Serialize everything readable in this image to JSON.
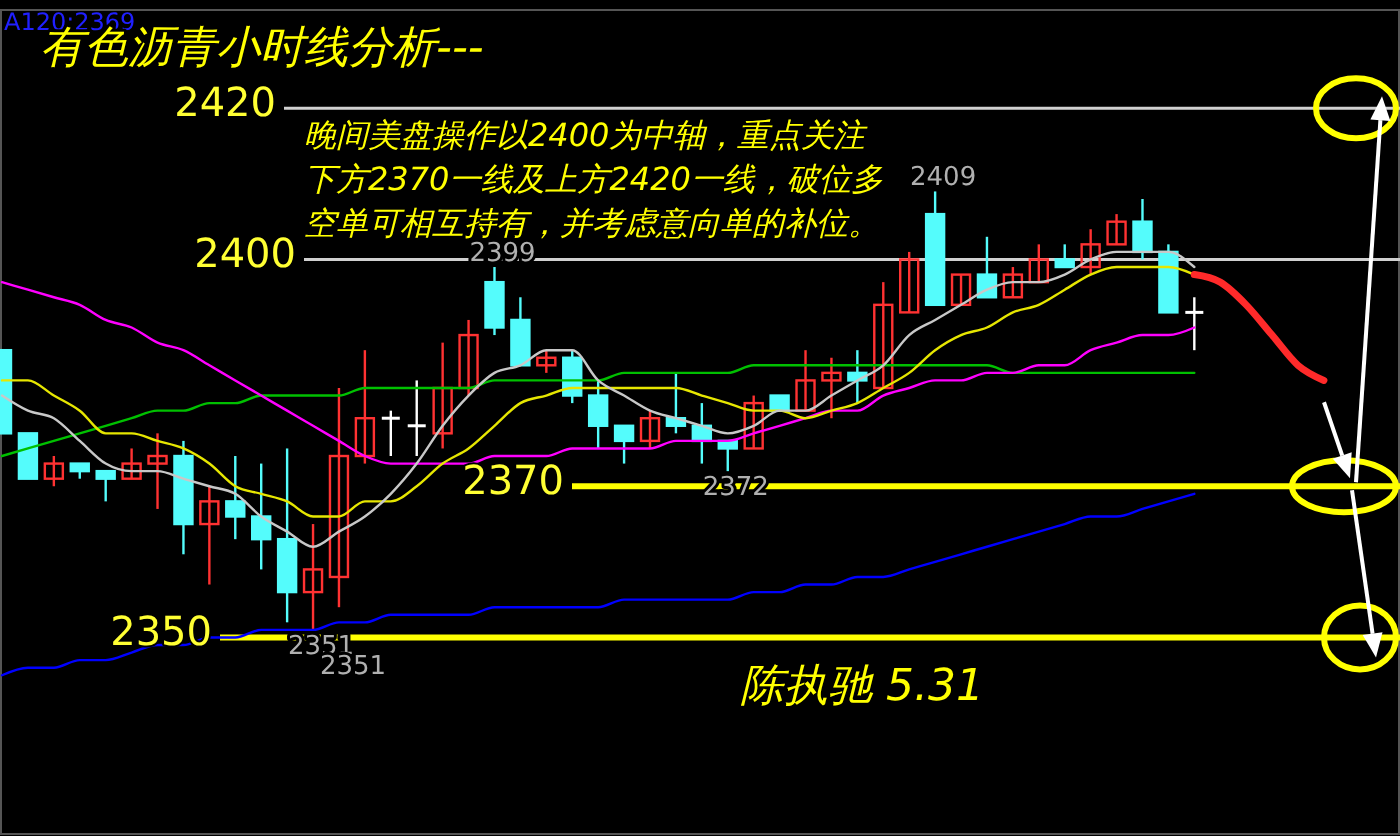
{
  "chart_data": {
    "type": "candlestick",
    "title": "有色沥青小时线分析---",
    "tick_labels": false,
    "ylim": [
      2324,
      2433
    ],
    "categories": [
      null,
      null,
      null,
      null,
      null,
      null,
      null,
      null,
      null,
      null,
      null,
      null,
      null,
      null,
      null,
      null,
      null,
      null,
      null,
      null,
      null,
      null,
      null,
      null,
      null,
      null,
      null,
      null,
      null,
      null,
      null,
      null,
      null,
      null,
      null,
      null,
      null,
      null,
      null,
      null,
      null,
      null,
      null,
      null,
      null,
      null,
      null,
      null,
      null,
      null,
      null,
      null,
      null,
      null
    ],
    "ohlc": [
      [
        2388,
        2388,
        2377,
        2377
      ],
      [
        2377,
        2377,
        2371,
        2371
      ],
      [
        2371,
        2374,
        2370,
        2373
      ],
      [
        2373,
        2373,
        2371,
        2372
      ],
      [
        2372,
        2372,
        2368,
        2371
      ],
      [
        2371,
        2375,
        2371,
        2373
      ],
      [
        2373,
        2377,
        2367,
        2374
      ],
      [
        2374,
        2376,
        2361,
        2365
      ],
      [
        2365,
        2370,
        2357,
        2368
      ],
      [
        2368,
        2374,
        2363,
        2366
      ],
      [
        2366,
        2373,
        2359,
        2363
      ],
      [
        2363,
        2375,
        2352,
        2356
      ],
      [
        2356,
        2365,
        2351,
        2359
      ],
      [
        2358,
        2383,
        2354,
        2374
      ],
      [
        2374,
        2388,
        2373,
        2379
      ],
      [
        2379,
        2380,
        2374,
        2379
      ],
      [
        2378,
        2384,
        2374,
        2378
      ],
      [
        2377,
        2389,
        2375,
        2383
      ],
      [
        2383,
        2392,
        2382,
        2390
      ],
      [
        2397,
        2399,
        2390,
        2391
      ],
      [
        2392,
        2395,
        2386,
        2386
      ],
      [
        2386,
        2388,
        2385,
        2387
      ],
      [
        2387,
        2388,
        2381,
        2382
      ],
      [
        2382,
        2384,
        2375,
        2378
      ],
      [
        2378,
        2378,
        2373,
        2376
      ],
      [
        2376,
        2380,
        2375,
        2379
      ],
      [
        2379,
        2385,
        2377,
        2378
      ],
      [
        2378,
        2381,
        2373,
        2376
      ],
      [
        2376,
        2376,
        2372,
        2375
      ],
      [
        2375,
        2382,
        2375,
        2381
      ],
      [
        2382,
        2382,
        2380,
        2380
      ],
      [
        2380,
        2388,
        2380,
        2384
      ],
      [
        2384,
        2387,
        2379,
        2385
      ],
      [
        2385,
        2388,
        2381,
        2384
      ],
      [
        2383,
        2397,
        2383,
        2394
      ],
      [
        2393,
        2401,
        2393,
        2400
      ],
      [
        2406,
        2409,
        2394,
        2394
      ],
      [
        2394,
        2398,
        2394,
        2398
      ],
      [
        2398,
        2403,
        2395,
        2395
      ],
      [
        2395,
        2399,
        2395,
        2398
      ],
      [
        2397,
        2402,
        2397,
        2400
      ],
      [
        2400,
        2402,
        2399,
        2399
      ],
      [
        2399,
        2404,
        2398,
        2402
      ],
      [
        2402,
        2406,
        2402,
        2405
      ],
      [
        2405,
        2408,
        2400,
        2401
      ],
      [
        2401,
        2402,
        2393,
        2393
      ],
      [
        2393,
        2395,
        2388,
        2393
      ],
      null,
      null,
      null,
      null,
      null,
      null,
      null
    ],
    "colors": [
      "#54fcfc",
      "#54fcfc",
      "#ff3232",
      "#54fcfc",
      "#54fcfc",
      "#ff3232",
      "#ff3232",
      "#54fcfc",
      "#ff3232",
      "#54fcfc",
      "#54fcfc",
      "#54fcfc",
      "#ff3232",
      "#ff3232",
      "#ff3232",
      "#ffffff",
      "#ffffff",
      "#ff3232",
      "#ff3232",
      "#54fcfc",
      "#54fcfc",
      "#ff3232",
      "#54fcfc",
      "#54fcfc",
      "#54fcfc",
      "#ff3232",
      "#54fcfc",
      "#54fcfc",
      "#54fcfc",
      "#ff3232",
      "#54fcfc",
      "#ff3232",
      "#ff3232",
      "#54fcfc",
      "#ff3232",
      "#ff3232",
      "#54fcfc",
      "#ff3232",
      "#54fcfc",
      "#ff3232",
      "#ff3232",
      "#54fcfc",
      "#ff3232",
      "#ff3232",
      "#54fcfc",
      "#54fcfc",
      "#ffffff",
      null,
      null,
      null,
      null,
      null,
      null,
      null
    ],
    "series": [
      {
        "type": "line",
        "color": "#0000ff",
        "values": [
          2345,
          2346,
          2346,
          2347,
          2347,
          2348,
          2349,
          2349,
          2350,
          2350,
          2351,
          2351,
          2351,
          2352,
          2352,
          2353,
          2353,
          2353,
          2353,
          2354,
          2354,
          2354,
          2354,
          2354,
          2355,
          2355,
          2355,
          2355,
          2355,
          2356,
          2356,
          2357,
          2357,
          2358,
          2358,
          2359,
          2360,
          2361,
          2362,
          2363,
          2364,
          2365,
          2366,
          2366,
          2367,
          2368,
          2369,
          null,
          null,
          null,
          null,
          null,
          null,
          null
        ]
      },
      {
        "type": "line",
        "color": "#00c000",
        "values": [
          2374,
          2375,
          2376,
          2377,
          2378,
          2379,
          2380,
          2380,
          2381,
          2381,
          2382,
          2382,
          2382,
          2382,
          2383,
          2383,
          2383,
          2383,
          2383,
          2384,
          2384,
          2384,
          2384,
          2384,
          2385,
          2385,
          2385,
          2385,
          2385,
          2386,
          2386,
          2386,
          2386,
          2386,
          2386,
          2386,
          2386,
          2386,
          2386,
          2385,
          2385,
          2385,
          2385,
          2385,
          2385,
          2385,
          2385,
          null,
          null,
          null,
          null,
          null,
          null,
          null
        ]
      },
      {
        "type": "line",
        "color": "#ff00ff",
        "values": [
          2397,
          2396,
          2395,
          2394,
          2392,
          2391,
          2389,
          2388,
          2386,
          2384,
          2382,
          2380,
          2378,
          2376,
          2374,
          2373,
          2373,
          2373,
          2373,
          2374,
          2374,
          2374,
          2375,
          2375,
          2375,
          2375,
          2376,
          2376,
          2376,
          2377,
          2378,
          2379,
          2380,
          2380,
          2382,
          2383,
          2384,
          2384,
          2385,
          2385,
          2386,
          2386,
          2388,
          2389,
          2390,
          2390,
          2391,
          null,
          null,
          null,
          null,
          null,
          null,
          null
        ]
      },
      {
        "type": "line",
        "color": "#e6e600",
        "values": [
          2384,
          2384,
          2382,
          2380,
          2377,
          2377,
          2376,
          2375,
          2373,
          2370,
          2369,
          2368,
          2366,
          2366,
          2368,
          2368,
          2370,
          2373,
          2375,
          2378,
          2381,
          2382,
          2383,
          2383,
          2383,
          2383,
          2383,
          2382,
          2381,
          2380,
          2380,
          2379,
          2380,
          2381,
          2383,
          2385,
          2388,
          2390,
          2391,
          2393,
          2394,
          2396,
          2398,
          2399,
          2399,
          2399,
          2398,
          null,
          null,
          null,
          null,
          null,
          null,
          null
        ]
      },
      {
        "type": "line",
        "color": "#c8c8c8",
        "values": [
          2382,
          2380,
          2379,
          2376,
          2373,
          2372,
          2372,
          2371,
          2370,
          2369,
          2366,
          2364,
          2362,
          2364,
          2366,
          2369,
          2373,
          2378,
          2382,
          2385,
          2386,
          2388,
          2388,
          2384,
          2382,
          2380,
          2379,
          2378,
          2377,
          2378,
          2380,
          2380,
          2382,
          2384,
          2386,
          2390,
          2392,
          2394,
          2396,
          2397,
          2397,
          2398,
          2400,
          2401,
          2401,
          2401,
          2399,
          null,
          null,
          null,
          null,
          null,
          null,
          null
        ]
      },
      {
        "type": "line",
        "color": "#ff2a2a",
        "values": [
          null,
          null,
          null,
          null,
          null,
          null,
          null,
          null,
          null,
          null,
          null,
          null,
          null,
          null,
          null,
          null,
          null,
          null,
          null,
          null,
          null,
          null,
          null,
          null,
          null,
          null,
          null,
          null,
          null,
          null,
          null,
          null,
          null,
          null,
          null,
          null,
          null,
          null,
          null,
          null,
          null,
          null,
          null,
          null,
          null,
          null,
          2398,
          2397,
          2394,
          2390,
          2386,
          2384,
          null,
          null
        ]
      }
    ],
    "ref_lines": [
      {
        "axis": "y",
        "value": 2420,
        "label": "2420",
        "color": "#d0d0d0"
      },
      {
        "axis": "y",
        "value": 2400,
        "label": "2400",
        "color": "#d0d0d0"
      },
      {
        "axis": "y",
        "value": 2370,
        "label": "2370",
        "color": "#ffff00"
      },
      {
        "axis": "y",
        "value": 2350,
        "label": "2350",
        "color": "#ffff00"
      }
    ],
    "annotations": [
      "A120:2369",
      {
        "text": "2409",
        "y": 2409
      },
      {
        "text": "2399",
        "y": 2399
      },
      {
        "text": "2372",
        "y": 2372
      },
      {
        "text": "2351",
        "y": 2351
      },
      {
        "text": "2351",
        "y": 2351
      },
      "晚间美盘操作以2400为中轴，重点关注下方2370一线及上方2420一线，破位多空单可相互持有，并考虑意向单的补位。",
      "陈执驰    5.31"
    ]
  }
}
